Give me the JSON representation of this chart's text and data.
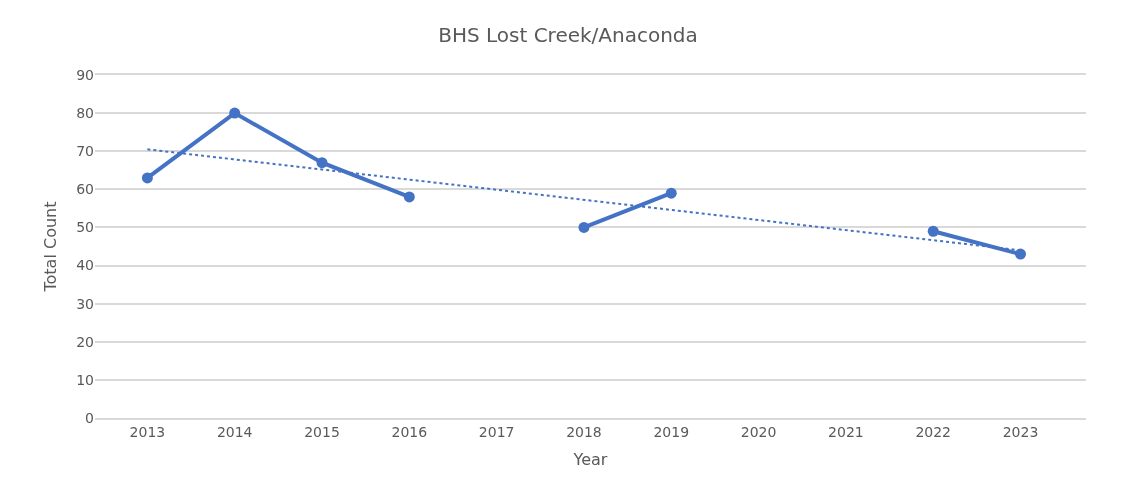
{
  "chart_data": {
    "type": "line",
    "title": "BHS Lost Creek/Anaconda",
    "xlabel": "Year",
    "ylabel": "Total Count",
    "x": [
      2013,
      2014,
      2015,
      2016,
      2017,
      2018,
      2019,
      2020,
      2021,
      2022,
      2023
    ],
    "series": [
      {
        "color": "#4472c4",
        "values": [
          63,
          80,
          67,
          58,
          null,
          50,
          59,
          null,
          null,
          49,
          43
        ],
        "marker": "circle",
        "line_style": "solid"
      },
      {
        "type": "line",
        "color": "#4472c4",
        "x": [
          2013,
          2023
        ],
        "values": [
          70.5,
          44
        ],
        "marker": "none",
        "line_style": "dotted"
      }
    ],
    "xlim": [
      2012.4,
      2023.75
    ],
    "xticks": [
      2013,
      2014,
      2015,
      2016,
      2017,
      2018,
      2019,
      2020,
      2021,
      2022,
      2023
    ],
    "ylim": [
      0,
      90
    ],
    "yticks": [
      0,
      10,
      20,
      30,
      40,
      50,
      60,
      70,
      80,
      90
    ],
    "grid": "y"
  }
}
